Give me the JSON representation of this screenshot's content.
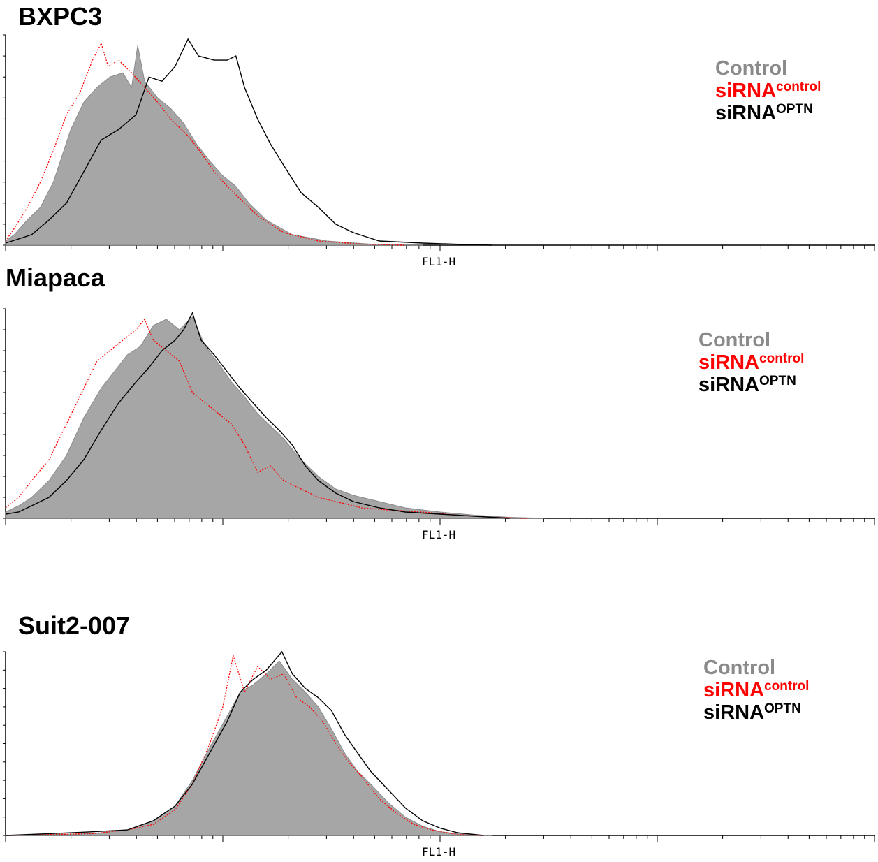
{
  "colors": {
    "control": "#8a8a8a",
    "control_fill": "#a6a6a6",
    "sirna_control": "#ff0000",
    "sirna_optn": "#000000"
  },
  "legend": {
    "control": "Control",
    "sirna_base": "siRNA",
    "sirna_control_sup": "control",
    "sirna_optn_sup": "OPTN"
  },
  "chart_data": [
    {
      "type": "area",
      "title": "BXPC3",
      "xlabel": "FL1-H",
      "ylabel": "",
      "xlim": [
        0,
        1000
      ],
      "ylim": [
        0,
        100
      ],
      "grid": false,
      "legend_position": "top-right",
      "series": [
        {
          "name": "Control",
          "style": "filled-gray",
          "points": [
            [
              0,
              2
            ],
            [
              10,
              5
            ],
            [
              25,
              12
            ],
            [
              40,
              18
            ],
            [
              55,
              30
            ],
            [
              75,
              55
            ],
            [
              90,
              68
            ],
            [
              105,
              75
            ],
            [
              120,
              80
            ],
            [
              135,
              82
            ],
            [
              145,
              75
            ],
            [
              152,
              95
            ],
            [
              160,
              78
            ],
            [
              175,
              70
            ],
            [
              190,
              65
            ],
            [
              205,
              58
            ],
            [
              220,
              48
            ],
            [
              235,
              40
            ],
            [
              250,
              33
            ],
            [
              265,
              28
            ],
            [
              280,
              20
            ],
            [
              300,
              12
            ],
            [
              330,
              5
            ],
            [
              370,
              2
            ],
            [
              420,
              0.5
            ],
            [
              480,
              0
            ]
          ]
        },
        {
          "name": "siRNA control",
          "style": "red-dotted",
          "points": [
            [
              0,
              2
            ],
            [
              10,
              8
            ],
            [
              25,
              18
            ],
            [
              40,
              30
            ],
            [
              55,
              45
            ],
            [
              70,
              62
            ],
            [
              85,
              72
            ],
            [
              100,
              88
            ],
            [
              110,
              96
            ],
            [
              118,
              85
            ],
            [
              130,
              88
            ],
            [
              145,
              82
            ],
            [
              160,
              75
            ],
            [
              175,
              68
            ],
            [
              190,
              60
            ],
            [
              210,
              52
            ],
            [
              225,
              44
            ],
            [
              240,
              35
            ],
            [
              255,
              28
            ],
            [
              270,
              22
            ],
            [
              290,
              14
            ],
            [
              320,
              6
            ],
            [
              360,
              2
            ],
            [
              410,
              0.5
            ],
            [
              460,
              0
            ]
          ]
        },
        {
          "name": "siRNA OPTN",
          "style": "black-line",
          "points": [
            [
              0,
              1
            ],
            [
              15,
              3
            ],
            [
              30,
              5
            ],
            [
              50,
              12
            ],
            [
              70,
              20
            ],
            [
              90,
              35
            ],
            [
              110,
              50
            ],
            [
              130,
              55
            ],
            [
              150,
              62
            ],
            [
              165,
              80
            ],
            [
              180,
              78
            ],
            [
              195,
              85
            ],
            [
              210,
              98
            ],
            [
              222,
              90
            ],
            [
              240,
              88
            ],
            [
              255,
              88
            ],
            [
              265,
              90
            ],
            [
              275,
              75
            ],
            [
              290,
              60
            ],
            [
              305,
              48
            ],
            [
              320,
              38
            ],
            [
              340,
              25
            ],
            [
              360,
              18
            ],
            [
              380,
              10
            ],
            [
              400,
              6
            ],
            [
              430,
              2
            ],
            [
              480,
              1
            ],
            [
              530,
              0.3
            ],
            [
              560,
              0
            ]
          ]
        }
      ]
    },
    {
      "type": "area",
      "title": "Miapaca",
      "xlabel": "FL1-H",
      "ylabel": "",
      "xlim": [
        0,
        1000
      ],
      "ylim": [
        0,
        100
      ],
      "grid": false,
      "legend_position": "top-right",
      "series": [
        {
          "name": "Control",
          "style": "filled-gray",
          "points": [
            [
              0,
              3
            ],
            [
              15,
              6
            ],
            [
              30,
              10
            ],
            [
              50,
              18
            ],
            [
              70,
              30
            ],
            [
              90,
              48
            ],
            [
              110,
              62
            ],
            [
              125,
              70
            ],
            [
              140,
              78
            ],
            [
              155,
              82
            ],
            [
              170,
              92
            ],
            [
              185,
              95
            ],
            [
              200,
              90
            ],
            [
              215,
              96
            ],
            [
              230,
              82
            ],
            [
              245,
              74
            ],
            [
              260,
              65
            ],
            [
              275,
              58
            ],
            [
              290,
              50
            ],
            [
              305,
              44
            ],
            [
              320,
              38
            ],
            [
              340,
              28
            ],
            [
              360,
              20
            ],
            [
              380,
              14
            ],
            [
              400,
              11
            ],
            [
              430,
              8
            ],
            [
              460,
              5
            ],
            [
              500,
              3
            ],
            [
              540,
              1.5
            ],
            [
              580,
              0.5
            ],
            [
              620,
              0
            ]
          ]
        },
        {
          "name": "siRNA control",
          "style": "red-dotted",
          "points": [
            [
              0,
              5
            ],
            [
              15,
              10
            ],
            [
              30,
              18
            ],
            [
              50,
              28
            ],
            [
              70,
              45
            ],
            [
              90,
              62
            ],
            [
              105,
              75
            ],
            [
              120,
              80
            ],
            [
              135,
              85
            ],
            [
              150,
              90
            ],
            [
              160,
              95
            ],
            [
              170,
              85
            ],
            [
              185,
              80
            ],
            [
              200,
              75
            ],
            [
              215,
              60
            ],
            [
              230,
              55
            ],
            [
              245,
              50
            ],
            [
              260,
              45
            ],
            [
              275,
              35
            ],
            [
              290,
              22
            ],
            [
              305,
              25
            ],
            [
              320,
              18
            ],
            [
              340,
              14
            ],
            [
              360,
              10
            ],
            [
              380,
              8
            ],
            [
              410,
              5
            ],
            [
              440,
              4
            ],
            [
              480,
              3
            ],
            [
              520,
              1.5
            ],
            [
              560,
              0.5
            ],
            [
              600,
              0
            ]
          ]
        },
        {
          "name": "siRNA OPTN",
          "style": "black-line",
          "points": [
            [
              0,
              2
            ],
            [
              15,
              3
            ],
            [
              30,
              6
            ],
            [
              50,
              10
            ],
            [
              70,
              18
            ],
            [
              90,
              28
            ],
            [
              110,
              42
            ],
            [
              130,
              55
            ],
            [
              150,
              65
            ],
            [
              165,
              72
            ],
            [
              180,
              80
            ],
            [
              195,
              85
            ],
            [
              205,
              90
            ],
            [
              215,
              98
            ],
            [
              225,
              85
            ],
            [
              240,
              78
            ],
            [
              255,
              70
            ],
            [
              270,
              62
            ],
            [
              285,
              55
            ],
            [
              300,
              48
            ],
            [
              315,
              42
            ],
            [
              330,
              35
            ],
            [
              345,
              25
            ],
            [
              360,
              18
            ],
            [
              380,
              12
            ],
            [
              400,
              8
            ],
            [
              430,
              5
            ],
            [
              460,
              3
            ],
            [
              500,
              2
            ],
            [
              540,
              1
            ],
            [
              580,
              0
            ]
          ]
        }
      ]
    },
    {
      "type": "area",
      "title": "Suit2-007",
      "xlabel": "FL1-H",
      "ylabel": "",
      "xlim": [
        0,
        1000
      ],
      "ylim": [
        0,
        100
      ],
      "grid": false,
      "legend_position": "top-right",
      "series": [
        {
          "name": "Control",
          "style": "filled-gray",
          "points": [
            [
              0,
              0
            ],
            [
              50,
              0.5
            ],
            [
              100,
              1
            ],
            [
              140,
              3
            ],
            [
              170,
              8
            ],
            [
              195,
              16
            ],
            [
              215,
              30
            ],
            [
              235,
              48
            ],
            [
              255,
              65
            ],
            [
              270,
              78
            ],
            [
              285,
              82
            ],
            [
              300,
              88
            ],
            [
              315,
              95
            ],
            [
              330,
              85
            ],
            [
              345,
              78
            ],
            [
              360,
              70
            ],
            [
              375,
              58
            ],
            [
              390,
              45
            ],
            [
              405,
              35
            ],
            [
              420,
              28
            ],
            [
              440,
              18
            ],
            [
              460,
              10
            ],
            [
              480,
              5
            ],
            [
              500,
              2
            ],
            [
              530,
              0.5
            ],
            [
              560,
              0
            ]
          ]
        },
        {
          "name": "siRNA control",
          "style": "red-dotted",
          "points": [
            [
              0,
              0
            ],
            [
              50,
              0.5
            ],
            [
              100,
              1
            ],
            [
              140,
              3
            ],
            [
              170,
              6
            ],
            [
              195,
              14
            ],
            [
              215,
              28
            ],
            [
              235,
              50
            ],
            [
              250,
              70
            ],
            [
              262,
              98
            ],
            [
              275,
              78
            ],
            [
              290,
              92
            ],
            [
              305,
              85
            ],
            [
              320,
              88
            ],
            [
              335,
              75
            ],
            [
              350,
              70
            ],
            [
              365,
              62
            ],
            [
              380,
              50
            ],
            [
              395,
              40
            ],
            [
              410,
              32
            ],
            [
              430,
              20
            ],
            [
              450,
              12
            ],
            [
              470,
              6
            ],
            [
              490,
              3
            ],
            [
              520,
              0.5
            ],
            [
              550,
              0
            ]
          ]
        },
        {
          "name": "siRNA OPTN",
          "style": "black-line",
          "points": [
            [
              0,
              0
            ],
            [
              50,
              1
            ],
            [
              100,
              2
            ],
            [
              140,
              3
            ],
            [
              170,
              8
            ],
            [
              195,
              16
            ],
            [
              215,
              28
            ],
            [
              235,
              45
            ],
            [
              255,
              62
            ],
            [
              270,
              78
            ],
            [
              285,
              85
            ],
            [
              300,
              90
            ],
            [
              318,
              100
            ],
            [
              330,
              88
            ],
            [
              345,
              80
            ],
            [
              360,
              75
            ],
            [
              375,
              68
            ],
            [
              390,
              55
            ],
            [
              405,
              45
            ],
            [
              420,
              35
            ],
            [
              440,
              25
            ],
            [
              460,
              15
            ],
            [
              480,
              8
            ],
            [
              500,
              4
            ],
            [
              520,
              1.5
            ],
            [
              550,
              0
            ]
          ]
        }
      ]
    }
  ]
}
